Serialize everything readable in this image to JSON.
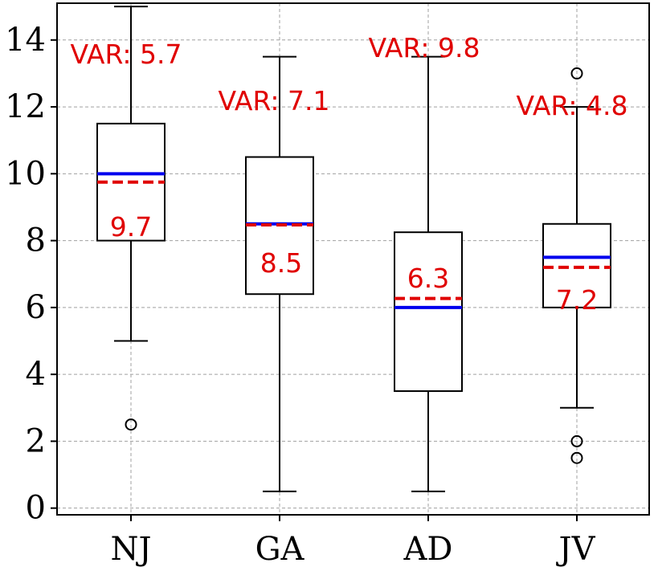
{
  "chart_data": {
    "type": "box",
    "title": "",
    "xlabel": "",
    "ylabel": "",
    "categories": [
      "NJ",
      "GA",
      "AD",
      "JV"
    ],
    "ylim": [
      -0.2,
      15.1
    ],
    "yticks": [
      0,
      2,
      4,
      6,
      8,
      10,
      12,
      14
    ],
    "grid": true,
    "boxes": [
      {
        "name": "NJ",
        "whisker_low": 5.0,
        "q1": 8.0,
        "median": 10.0,
        "q3": 11.5,
        "whisker_high": 15.0,
        "mean": 9.75,
        "outliers": [
          2.5
        ],
        "mean_label": "9.7",
        "var_label": "VAR: 5.7"
      },
      {
        "name": "GA",
        "whisker_low": 0.5,
        "q1": 6.4,
        "median": 8.5,
        "q3": 10.5,
        "whisker_high": 13.5,
        "mean": 8.47,
        "outliers": [],
        "mean_label": "8.5",
        "var_label": "VAR: 7.1"
      },
      {
        "name": "AD",
        "whisker_low": 0.5,
        "q1": 3.5,
        "median": 6.0,
        "q3": 8.25,
        "whisker_high": 13.5,
        "mean": 6.27,
        "outliers": [],
        "mean_label": "6.3",
        "var_label": "VAR: 9.8"
      },
      {
        "name": "JV",
        "whisker_low": 3.0,
        "q1": 6.0,
        "median": 7.5,
        "q3": 8.5,
        "whisker_high": 12.0,
        "mean": 7.2,
        "outliers": [
          13.0,
          2.0,
          1.5
        ],
        "mean_label": "7.2",
        "var_label": "VAR: 4.8"
      }
    ],
    "colors": {
      "median": "#0000ee",
      "mean": "#e00000",
      "annotation": "#e00000",
      "box": "#000000",
      "grid": "#a0a0a0"
    }
  }
}
